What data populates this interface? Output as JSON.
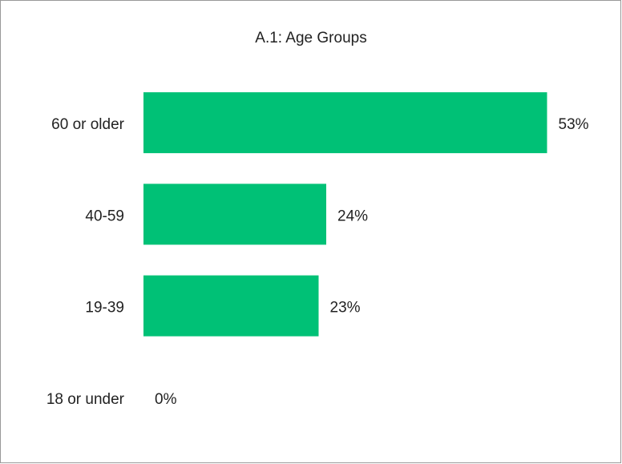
{
  "chart_data": {
    "type": "bar",
    "orientation": "horizontal",
    "title": "A.1: Age Groups",
    "categories": [
      "60 or older",
      "40-59",
      "19-39",
      "18 or under"
    ],
    "values": [
      53,
      24,
      23,
      0
    ],
    "value_labels": [
      "53%",
      "24%",
      "23%",
      "0%"
    ],
    "color": "#00c176",
    "xlim": [
      0,
      60
    ]
  }
}
